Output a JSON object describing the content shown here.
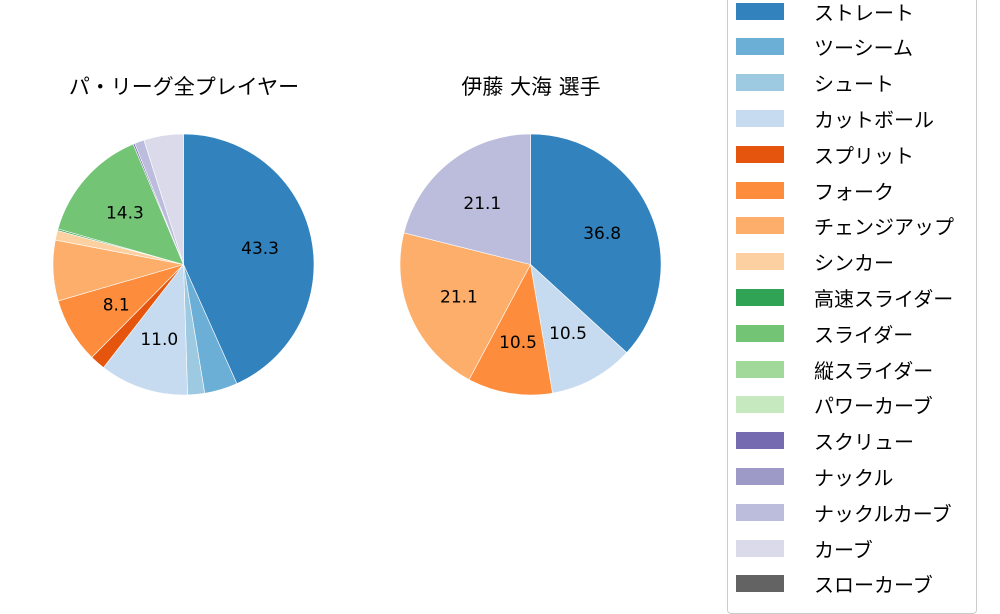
{
  "chart_data": [
    {
      "type": "pie",
      "title": "パ・リーグ全プレイヤー",
      "start_angle": 90,
      "direction": "clockwise",
      "slices": [
        {
          "label": "ストレート",
          "value": 43.3,
          "color": "#3182bd",
          "shown": "43.3"
        },
        {
          "label": "ツーシーム",
          "value": 4.1,
          "color": "#6baed6",
          "shown": ""
        },
        {
          "label": "シュート",
          "value": 2.1,
          "color": "#9ecae1",
          "shown": ""
        },
        {
          "label": "カットボール",
          "value": 11.0,
          "color": "#c6dbef",
          "shown": "11.0"
        },
        {
          "label": "スプリット",
          "value": 1.9,
          "color": "#e6550d",
          "shown": ""
        },
        {
          "label": "フォーク",
          "value": 8.1,
          "color": "#fd8d3c",
          "shown": "8.1"
        },
        {
          "label": "チェンジアップ",
          "value": 7.5,
          "color": "#fdae6b",
          "shown": ""
        },
        {
          "label": "シンカー",
          "value": 1.2,
          "color": "#fdd0a2",
          "shown": ""
        },
        {
          "label": "高速スライダー",
          "value": 0.2,
          "color": "#31a354",
          "shown": ""
        },
        {
          "label": "スライダー",
          "value": 14.3,
          "color": "#74c476",
          "shown": "14.3"
        },
        {
          "label": "スクリュー",
          "value": 0.2,
          "color": "#756bb1",
          "shown": ""
        },
        {
          "label": "ナックルカーブ",
          "value": 1.2,
          "color": "#bcbddc",
          "shown": ""
        },
        {
          "label": "カーブ",
          "value": 4.9,
          "color": "#dadaeb",
          "shown": ""
        }
      ]
    },
    {
      "type": "pie",
      "title": "伊藤 大海  選手",
      "start_angle": 90,
      "direction": "clockwise",
      "slices": [
        {
          "label": "ストレート",
          "value": 36.8,
          "color": "#3182bd",
          "shown": "36.8"
        },
        {
          "label": "カットボール",
          "value": 10.5,
          "color": "#c6dbef",
          "shown": "10.5"
        },
        {
          "label": "フォーク",
          "value": 10.5,
          "color": "#fd8d3c",
          "shown": "10.5"
        },
        {
          "label": "チェンジアップ",
          "value": 21.1,
          "color": "#fdae6b",
          "shown": "21.1"
        },
        {
          "label": "ナックルカーブ",
          "value": 21.1,
          "color": "#bcbddc",
          "shown": "21.1"
        }
      ]
    }
  ],
  "titles": {
    "left": "パ・リーグ全プレイヤー",
    "right": "伊藤 大海  選手"
  },
  "legend": [
    {
      "label": "ストレート",
      "color": "#3182bd"
    },
    {
      "label": "ツーシーム",
      "color": "#6baed6"
    },
    {
      "label": "シュート",
      "color": "#9ecae1"
    },
    {
      "label": "カットボール",
      "color": "#c6dbef"
    },
    {
      "label": "スプリット",
      "color": "#e6550d"
    },
    {
      "label": "フォーク",
      "color": "#fd8d3c"
    },
    {
      "label": "チェンジアップ",
      "color": "#fdae6b"
    },
    {
      "label": "シンカー",
      "color": "#fdd0a2"
    },
    {
      "label": "高速スライダー",
      "color": "#31a354"
    },
    {
      "label": "スライダー",
      "color": "#74c476"
    },
    {
      "label": "縦スライダー",
      "color": "#a1d99b"
    },
    {
      "label": "パワーカーブ",
      "color": "#c7e9c0"
    },
    {
      "label": "スクリュー",
      "color": "#756bb1"
    },
    {
      "label": "ナックル",
      "color": "#9e9ac8"
    },
    {
      "label": "ナックルカーブ",
      "color": "#bcbddc"
    },
    {
      "label": "カーブ",
      "color": "#dadaeb"
    },
    {
      "label": "スローカーブ",
      "color": "#636363"
    }
  ]
}
